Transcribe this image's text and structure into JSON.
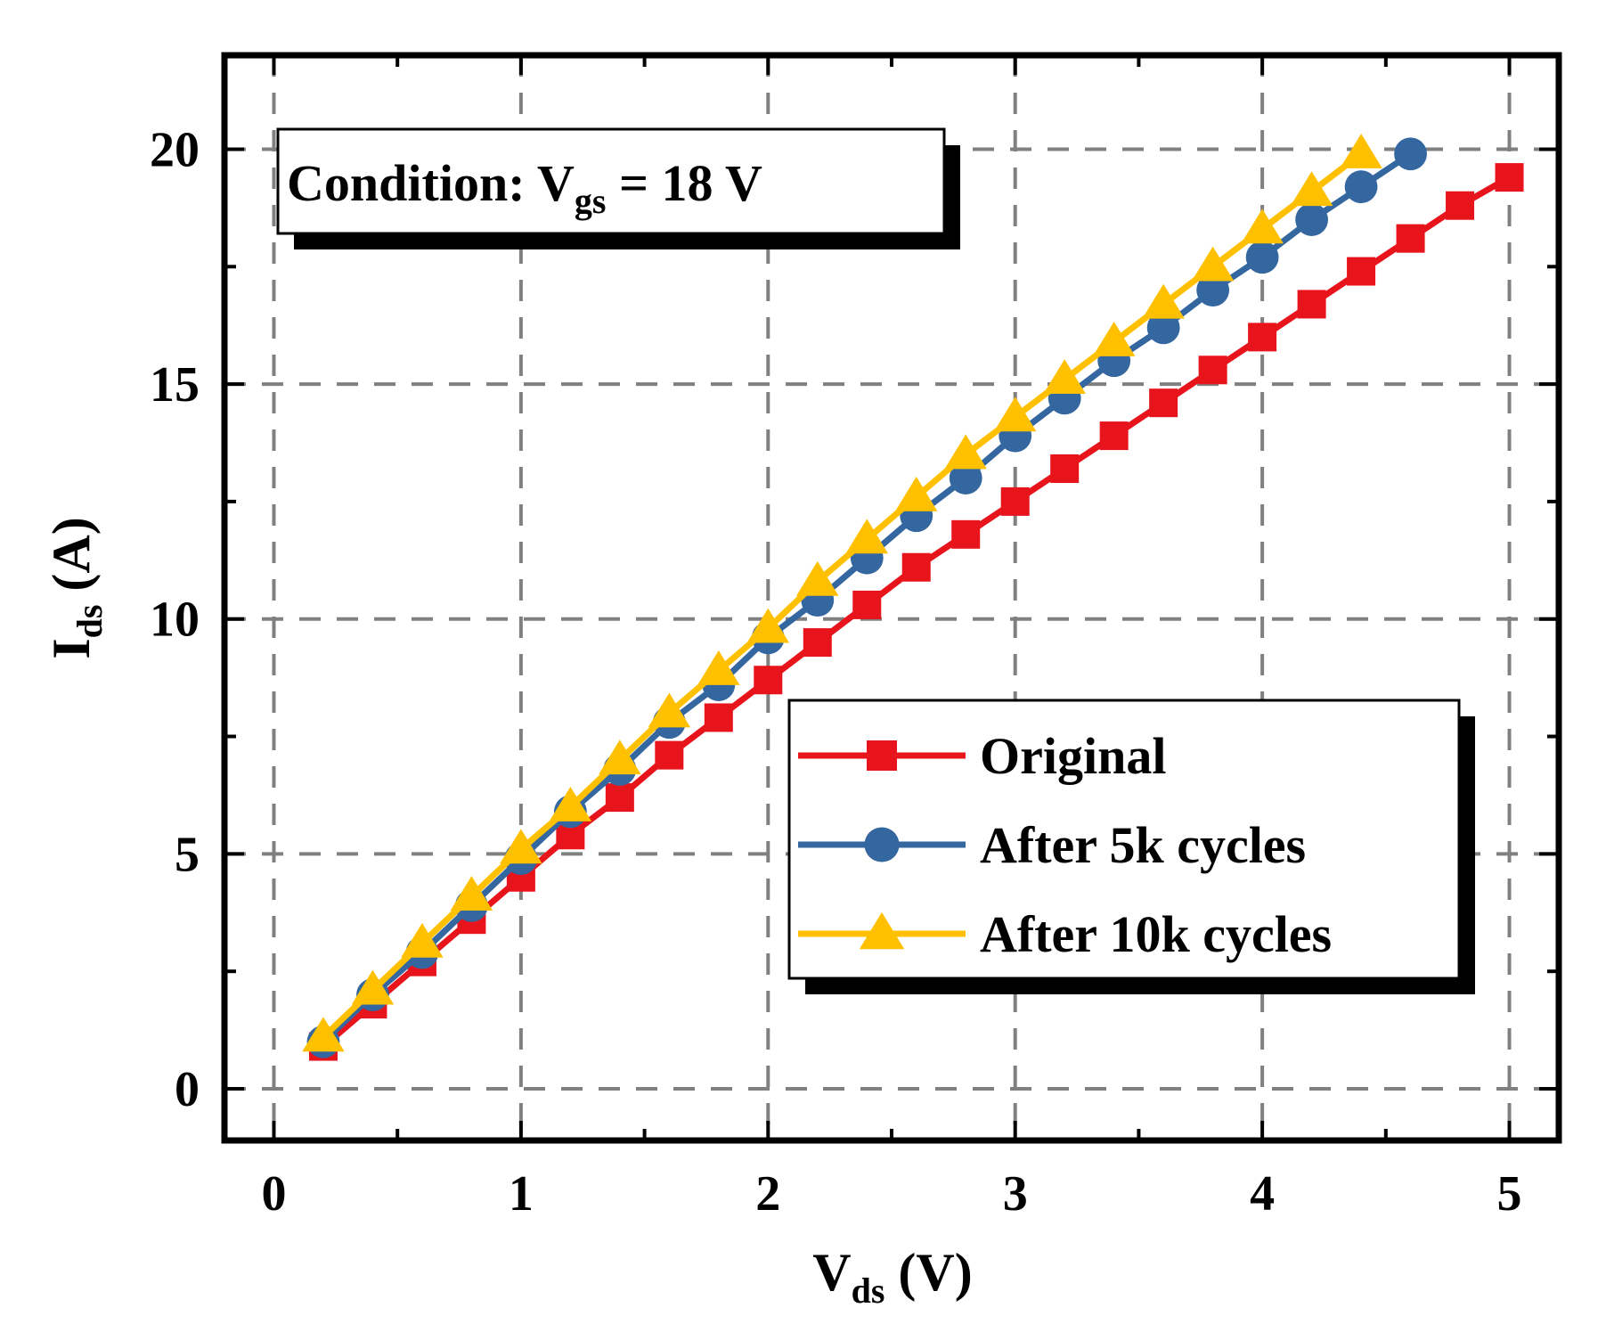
{
  "chart_data": {
    "type": "line",
    "xlabel": {
      "main": "V",
      "sub": "ds",
      "unit": " (V)"
    },
    "ylabel": {
      "main": "I",
      "sub": "ds",
      "unit": " (A)"
    },
    "xlim": [
      -0.2,
      5.2
    ],
    "ylim": [
      -1.1,
      22
    ],
    "xticks": [
      0,
      1,
      2,
      3,
      4,
      5
    ],
    "yticks": [
      0,
      5,
      10,
      15,
      20
    ],
    "xtick_labels": [
      "0",
      "1",
      "2",
      "3",
      "4",
      "5"
    ],
    "ytick_labels": [
      "0",
      "5",
      "10",
      "15",
      "20"
    ],
    "grid": true,
    "legend_position": "lower-right",
    "annotation": {
      "prefix": "Condition: V",
      "sub": "gs",
      "suffix": " = 18 V"
    },
    "series": [
      {
        "name": "Original",
        "color": "#e8141c",
        "marker": "square",
        "x": [
          0.2,
          0.4,
          0.6,
          0.8,
          1.0,
          1.2,
          1.4,
          1.6,
          1.8,
          2.0,
          2.2,
          2.4,
          2.6,
          2.8,
          3.0,
          3.2,
          3.4,
          3.6,
          3.8,
          4.0,
          4.2,
          4.4,
          4.6,
          4.8,
          5.0
        ],
        "y": [
          0.9,
          1.8,
          2.7,
          3.6,
          4.5,
          5.4,
          6.2,
          7.1,
          7.9,
          8.7,
          9.5,
          10.3,
          11.1,
          11.8,
          12.5,
          13.2,
          13.9,
          14.6,
          15.3,
          16.0,
          16.7,
          17.4,
          18.1,
          18.8,
          19.4
        ]
      },
      {
        "name": "After 5k cycles",
        "color": "#3466a0",
        "marker": "circle",
        "x": [
          0.2,
          0.4,
          0.6,
          0.8,
          1.0,
          1.2,
          1.4,
          1.6,
          1.8,
          2.0,
          2.2,
          2.4,
          2.6,
          2.8,
          3.0,
          3.2,
          3.4,
          3.6,
          3.8,
          4.0,
          4.2,
          4.4,
          4.6
        ],
        "y": [
          1.0,
          2.0,
          2.9,
          3.9,
          4.9,
          5.9,
          6.8,
          7.8,
          8.6,
          9.6,
          10.4,
          11.3,
          12.2,
          13.0,
          13.9,
          14.7,
          15.5,
          16.2,
          17.0,
          17.7,
          18.5,
          19.2,
          19.9
        ]
      },
      {
        "name": "After 10k cycles",
        "color": "#ffc000",
        "marker": "triangle",
        "x": [
          0.2,
          0.4,
          0.6,
          0.8,
          1.0,
          1.2,
          1.4,
          1.6,
          1.8,
          2.0,
          2.2,
          2.4,
          2.6,
          2.8,
          3.0,
          3.2,
          3.4,
          3.6,
          3.8,
          4.0,
          4.2,
          4.4
        ],
        "y": [
          1.1,
          2.1,
          3.1,
          4.1,
          5.1,
          6.0,
          7.0,
          8.0,
          8.9,
          9.8,
          10.8,
          11.7,
          12.6,
          13.5,
          14.3,
          15.1,
          15.9,
          16.7,
          17.5,
          18.3,
          19.1,
          19.9
        ]
      }
    ]
  }
}
